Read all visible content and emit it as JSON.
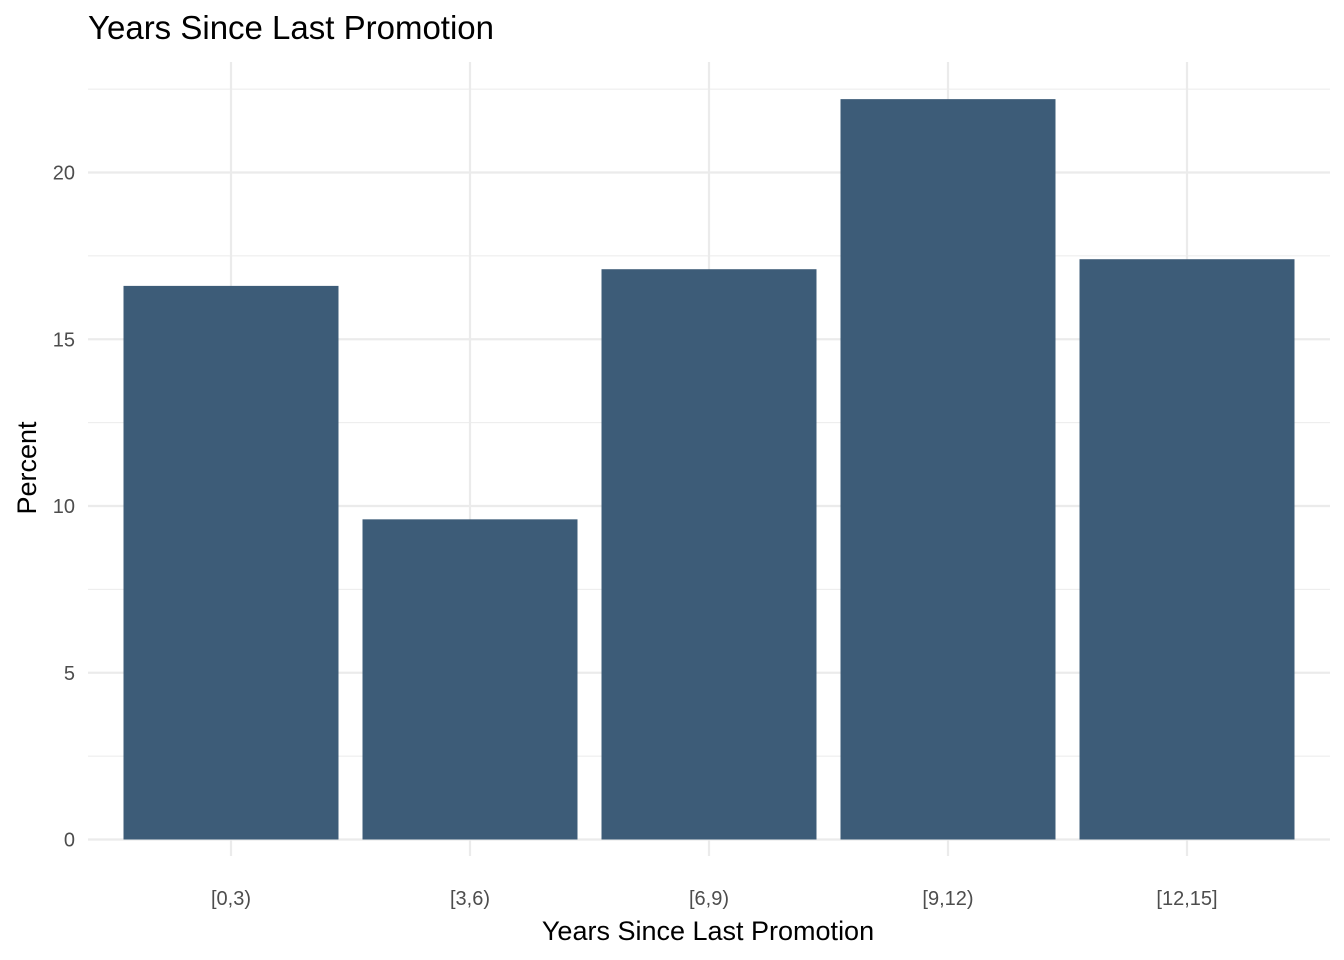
{
  "chart_data": {
    "type": "bar",
    "title": "Years Since Last Promotion",
    "xlabel": "Years Since Last Promotion",
    "ylabel": "Percent",
    "categories": [
      "[0,3)",
      "[3,6)",
      "[6,9)",
      "[9,12)",
      "[12,15]"
    ],
    "values": [
      16.6,
      9.6,
      17.1,
      22.2,
      17.4
    ],
    "ylim": [
      0,
      22.7
    ],
    "yticks": [
      0,
      5,
      10,
      15,
      20
    ],
    "bar_color": "#3d5c78",
    "grid": true,
    "legend": "none"
  }
}
